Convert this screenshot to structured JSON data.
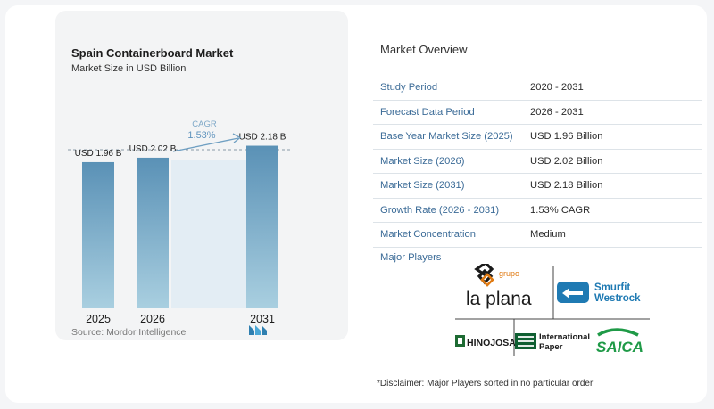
{
  "chart": {
    "title": "Spain Containerboard Market",
    "subtitle": "Market Size in USD Billion",
    "source": "Source: Mordor Intelligence",
    "cagr_label": "CAGR",
    "cagr_value": "1.53%"
  },
  "chart_data": {
    "type": "bar",
    "categories": [
      "2025",
      "2026",
      "2031"
    ],
    "values": [
      1.96,
      2.02,
      2.18
    ],
    "data_labels": [
      "USD 1.96 B",
      "USD 2.02 B",
      "USD 2.18 B"
    ],
    "title": "Spain Containerboard Market",
    "subtitle": "Market Size in USD Billion",
    "xlabel": "",
    "ylabel": "",
    "annotations": [
      "CAGR",
      "1.53%"
    ]
  },
  "overview": {
    "title": "Market Overview",
    "rows": [
      {
        "label": "Study Period",
        "value": "2020 - 2031"
      },
      {
        "label": "Forecast Data Period",
        "value": "2026 - 2031"
      },
      {
        "label": "Base Year Market Size (2025)",
        "value": "USD 1.96 Billion"
      },
      {
        "label": "Market Size (2026)",
        "value": "USD 2.02 Billion"
      },
      {
        "label": "Market Size (2031)",
        "value": "USD 2.18 Billion"
      },
      {
        "label": "Growth Rate (2026 - 2031)",
        "value": "1.53% CAGR"
      },
      {
        "label": "Market Concentration",
        "value": "Medium"
      }
    ],
    "players_title": "Major Players",
    "players": {
      "la_plana_small": "grupo",
      "la_plana_big": "la plana",
      "smurfit": "Smurfit",
      "westrock": "Westrock",
      "hinojosa": "HINOJOSA",
      "ip_line1": "International",
      "ip_line2": "Paper",
      "saica": "SAICA"
    },
    "disclaimer": "*Disclaimer: Major Players sorted in no particular order"
  },
  "colors": {
    "bar": "#5a91b6",
    "bar_light": "#a9c8dd",
    "cagr_band": "#e3edf4",
    "accent_text": "#3b6b97",
    "cagr_text": "#7ea8c8"
  }
}
